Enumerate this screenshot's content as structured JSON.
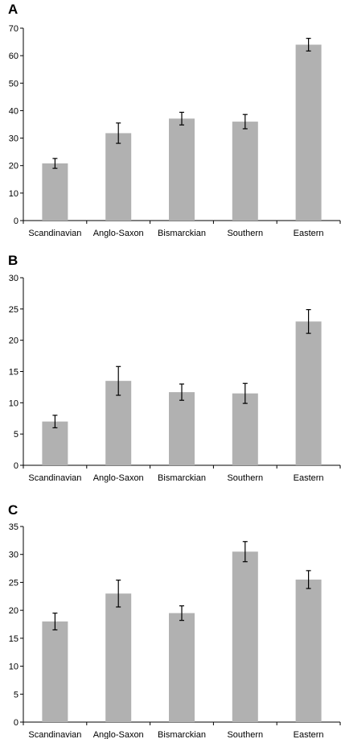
{
  "chart_data": [
    {
      "type": "bar",
      "panel_label": "A",
      "categories": [
        "Scandinavian",
        "Anglo-Saxon",
        "Bismarckian",
        "Southern",
        "Eastern"
      ],
      "values": [
        20.8,
        31.8,
        37.1,
        36.0,
        64.0
      ],
      "error": [
        1.8,
        3.7,
        2.3,
        2.6,
        2.3
      ],
      "ylim": [
        0,
        70
      ],
      "yticks": [
        0,
        10,
        20,
        30,
        40,
        50,
        60,
        70
      ],
      "bar_color": "#b1b1b1",
      "grid": false
    },
    {
      "type": "bar",
      "panel_label": "B",
      "categories": [
        "Scandinavian",
        "Anglo-Saxon",
        "Bismarckian",
        "Southern",
        "Eastern"
      ],
      "values": [
        7.0,
        13.5,
        11.7,
        11.5,
        23.0
      ],
      "error": [
        1.0,
        2.3,
        1.3,
        1.6,
        1.9
      ],
      "ylim": [
        0,
        30
      ],
      "yticks": [
        0,
        5,
        10,
        15,
        20,
        25,
        30
      ],
      "bar_color": "#b1b1b1",
      "grid": false
    },
    {
      "type": "bar",
      "panel_label": "C",
      "categories": [
        "Scandinavian",
        "Anglo-Saxon",
        "Bismarckian",
        "Southern",
        "Eastern"
      ],
      "values": [
        18.0,
        23.0,
        19.5,
        30.5,
        25.5
      ],
      "error": [
        1.5,
        2.4,
        1.3,
        1.8,
        1.6
      ],
      "ylim": [
        0,
        35
      ],
      "yticks": [
        0,
        5,
        10,
        15,
        20,
        25,
        30,
        35
      ],
      "bar_color": "#b1b1b1",
      "grid": false
    }
  ]
}
